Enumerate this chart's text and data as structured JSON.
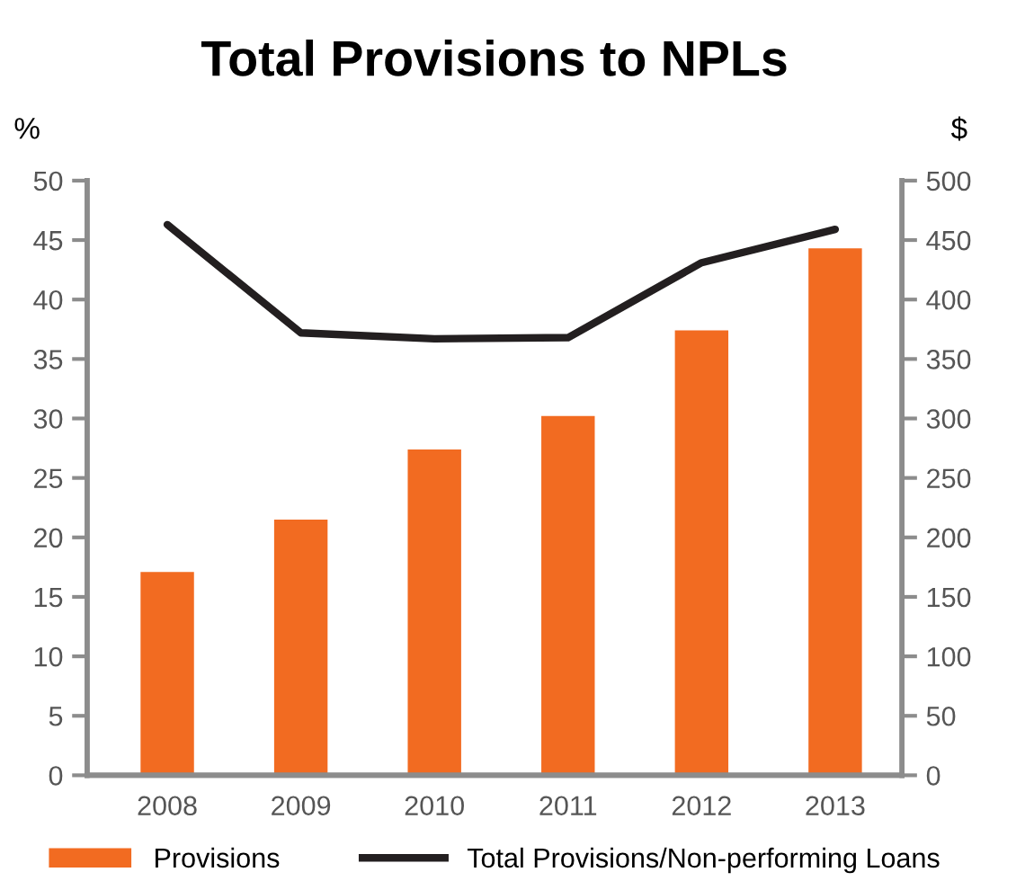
{
  "chart_data": {
    "type": "bar",
    "title": "Total Provisions to NPLs",
    "ylabel": "%",
    "y2label": "$",
    "categories": [
      "2008",
      "2009",
      "2010",
      "2011",
      "2012",
      "2013"
    ],
    "series": [
      {
        "name": "Provisions",
        "axis": "y2",
        "color": "#f26b21",
        "values": [
          171,
          215,
          274,
          302,
          374,
          443
        ]
      },
      {
        "name": "Total Provisions/Non-performing Loans",
        "type": "line",
        "axis": "y",
        "color": "#231f20",
        "values": [
          46.3,
          37.2,
          36.7,
          36.8,
          43.1,
          45.9
        ]
      }
    ],
    "ylim": [
      0,
      50
    ],
    "yticks": [
      0,
      5,
      10,
      15,
      20,
      25,
      30,
      35,
      40,
      45,
      50
    ],
    "y2lim": [
      0,
      500
    ],
    "y2ticks": [
      0,
      50,
      100,
      150,
      200,
      250,
      300,
      350,
      400,
      450,
      500
    ],
    "grid": false,
    "legend": "bottom",
    "marker": "none",
    "line_style": "solid"
  }
}
